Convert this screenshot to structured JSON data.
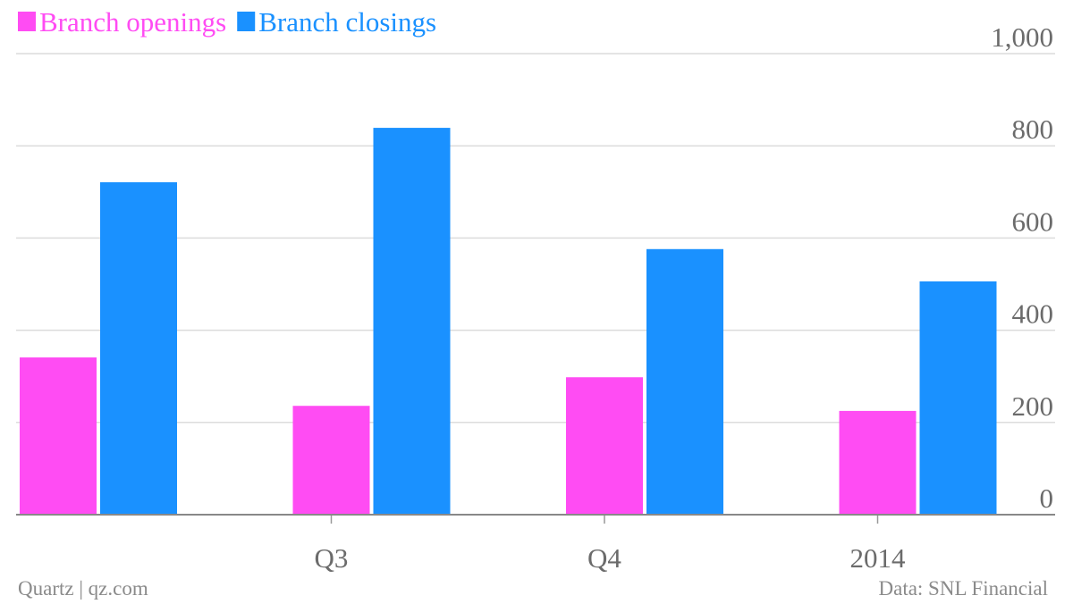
{
  "chart_data": {
    "type": "bar",
    "categories": [
      null,
      "Q3",
      "Q4",
      "2014"
    ],
    "series": [
      {
        "name": "Branch openings",
        "color": "#ff4cf3",
        "values": [
          341,
          236,
          298,
          225
        ]
      },
      {
        "name": "Branch closings",
        "color": "#1a91ff",
        "values": [
          721,
          839,
          576,
          506
        ]
      }
    ],
    "ylim": [
      0,
      1000
    ],
    "yticks": [
      0,
      200,
      400,
      600,
      800,
      {
        "value": 1000,
        "label": "1,000"
      }
    ],
    "grid": true,
    "legend": "top-left",
    "credit": "Quartz | qz.com",
    "source": "Data: SNL Financial"
  }
}
